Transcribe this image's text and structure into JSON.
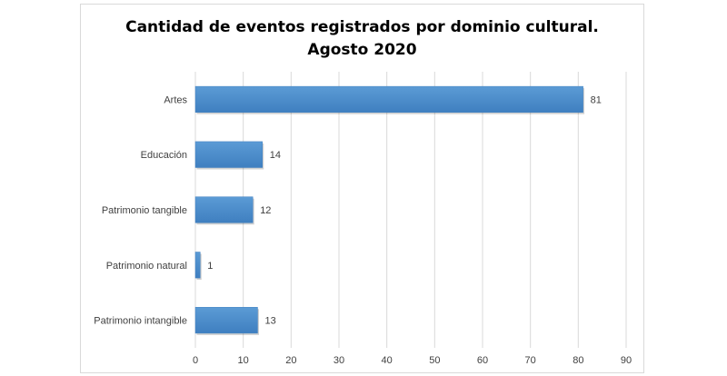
{
  "chart_data": {
    "type": "bar",
    "orientation": "horizontal",
    "title_lines": [
      "Cantidad de eventos registrados por dominio cultural.",
      "Agosto 2020"
    ],
    "categories": [
      "Artes",
      "Educación",
      "Patrimonio tangible",
      "Patrimonio natural",
      "Patrimonio intangible"
    ],
    "values": [
      81,
      14,
      12,
      1,
      13
    ],
    "xlim": [
      0,
      90
    ],
    "xticks": [
      0,
      10,
      20,
      30,
      40,
      50,
      60,
      70,
      80,
      90
    ],
    "grid": true,
    "data_labels": true,
    "legend": "none",
    "colors": {
      "bar": "#5b9bd5",
      "bar_dark": "#3f7fc0",
      "grid": "#d9d9d9"
    }
  }
}
